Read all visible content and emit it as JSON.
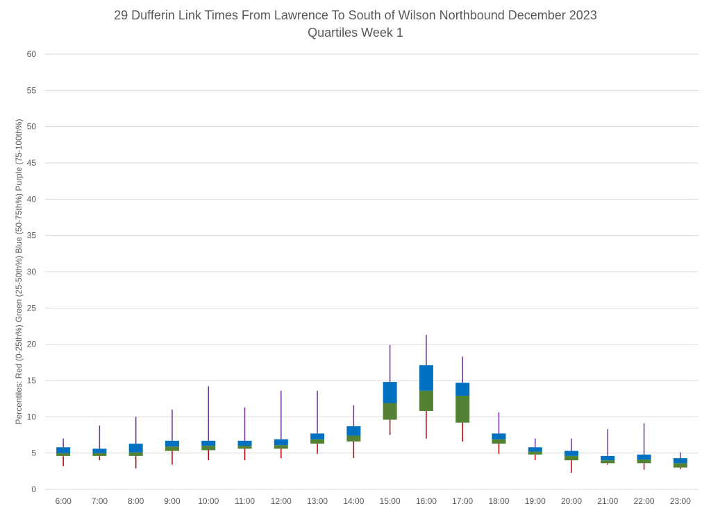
{
  "chart_data": {
    "type": "box",
    "title": "29 Dufferin Link Times From Lawrence To South of Wilson Northbound December 2023",
    "subtitle": "Quartiles Week 1",
    "xlabel": "",
    "ylabel": "Percentiles:  Red (0-25th%)  Green (25-50th%)  Blue (50-75th%)  Purple (75-100th%)",
    "ylim": [
      0,
      60
    ],
    "yticks": [
      "0",
      "5",
      "10",
      "15",
      "20",
      "25",
      "30",
      "35",
      "40",
      "45",
      "50",
      "55",
      "60"
    ],
    "grid": true,
    "categories": [
      "6:00",
      "7:00",
      "8:00",
      "9:00",
      "10:00",
      "11:00",
      "12:00",
      "13:00",
      "14:00",
      "15:00",
      "16:00",
      "17:00",
      "18:00",
      "19:00",
      "20:00",
      "21:00",
      "22:00",
      "23:00"
    ],
    "series": [
      {
        "name": "0th percentile",
        "color": "#c00000",
        "values": [
          3.2,
          4.0,
          2.9,
          3.4,
          4.0,
          4.0,
          4.3,
          4.9,
          4.3,
          7.5,
          7.0,
          6.6,
          4.9,
          4.0,
          2.3,
          3.4,
          2.7,
          2.8
        ]
      },
      {
        "name": "25th percentile",
        "color": "#548235",
        "values": [
          4.6,
          4.6,
          4.6,
          5.3,
          5.4,
          5.6,
          5.6,
          6.3,
          6.6,
          9.6,
          10.8,
          9.2,
          6.3,
          4.8,
          4.0,
          3.6,
          3.6,
          3.0
        ]
      },
      {
        "name": "50th percentile",
        "color": "#0070c0",
        "values": [
          5.0,
          5.0,
          5.1,
          5.9,
          6.0,
          6.0,
          6.1,
          6.9,
          7.4,
          11.9,
          13.6,
          12.9,
          6.9,
          5.2,
          4.6,
          4.0,
          4.1,
          3.6
        ]
      },
      {
        "name": "75th percentile",
        "color": "#7030a0",
        "values": [
          5.8,
          5.6,
          6.3,
          6.7,
          6.7,
          6.7,
          6.9,
          7.7,
          8.7,
          14.8,
          17.1,
          14.7,
          7.7,
          5.8,
          5.3,
          4.6,
          4.8,
          4.3
        ]
      },
      {
        "name": "100th percentile",
        "color": "#7030a0",
        "values": [
          7.0,
          8.8,
          10.0,
          11.0,
          14.2,
          11.3,
          13.6,
          13.6,
          11.6,
          19.9,
          21.3,
          18.3,
          10.6,
          7.0,
          7.0,
          8.3,
          9.1,
          5.1
        ]
      }
    ],
    "colors": {
      "q0_25": "#c00000",
      "q25_50": "#548235",
      "q50_75": "#0070c0",
      "q75_100": "#7030a0",
      "grid": "#d9d9d9",
      "text": "#595959"
    }
  }
}
